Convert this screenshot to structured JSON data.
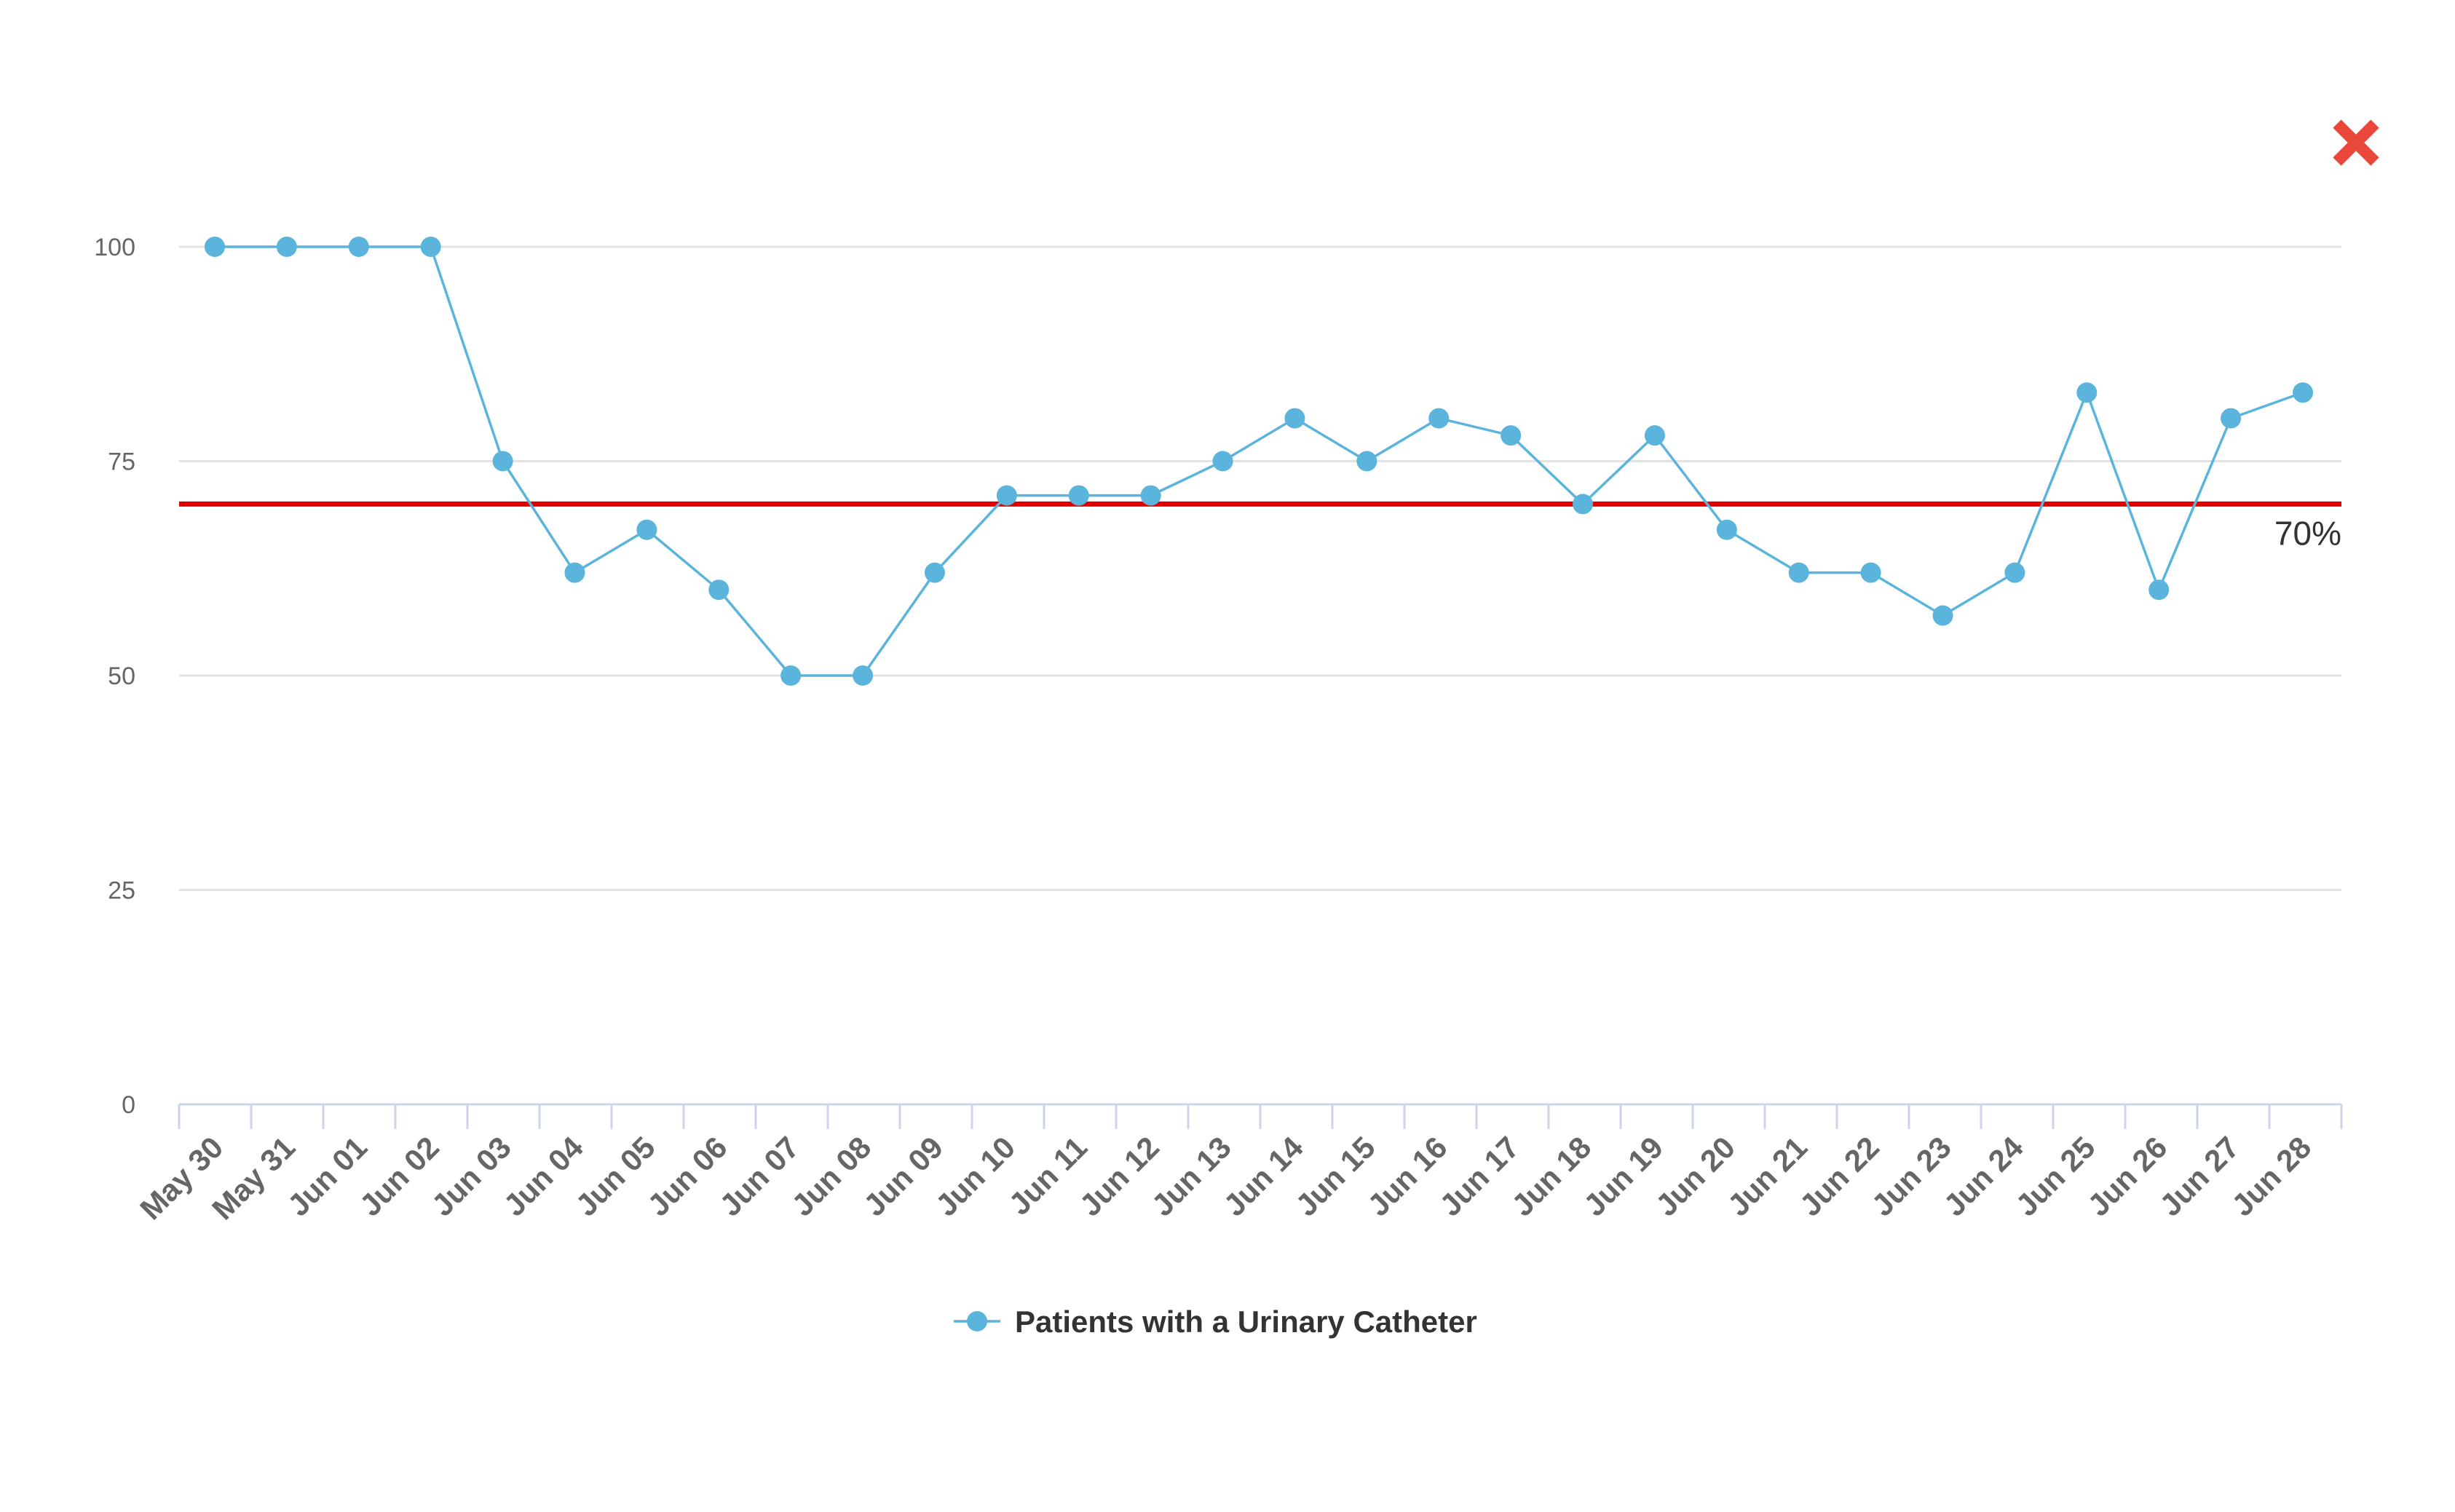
{
  "close_button": {
    "icon": "close-x-icon",
    "color": "#e8473a"
  },
  "chart_data": {
    "type": "line",
    "title": "",
    "xlabel": "",
    "ylabel": "",
    "categories": [
      "May 30",
      "May 31",
      "Jun 01",
      "Jun 02",
      "Jun 03",
      "Jun 04",
      "Jun 05",
      "Jun 06",
      "Jun 07",
      "Jun 08",
      "Jun 09",
      "Jun 10",
      "Jun 11",
      "Jun 12",
      "Jun 13",
      "Jun 14",
      "Jun 15",
      "Jun 16",
      "Jun 17",
      "Jun 18",
      "Jun 19",
      "Jun 20",
      "Jun 21",
      "Jun 22",
      "Jun 23",
      "Jun 24",
      "Jun 25",
      "Jun 26",
      "Jun 27",
      "Jun 28"
    ],
    "series": [
      {
        "name": "Patients with a Urinary Catheter",
        "color": "#5ab4dc",
        "values": [
          100,
          100,
          100,
          100,
          75,
          62,
          67,
          60,
          50,
          50,
          62,
          71,
          71,
          71,
          75,
          80,
          75,
          80,
          78,
          70,
          78,
          67,
          62,
          62,
          57,
          62,
          83,
          60,
          80,
          83
        ]
      }
    ],
    "ylim": [
      0,
      100
    ],
    "yticks": [
      0,
      25,
      50,
      75,
      100
    ],
    "grid": true,
    "legend": "bottom-center",
    "threshold": {
      "value": 70,
      "label": "70%",
      "color": "#e00000"
    }
  }
}
